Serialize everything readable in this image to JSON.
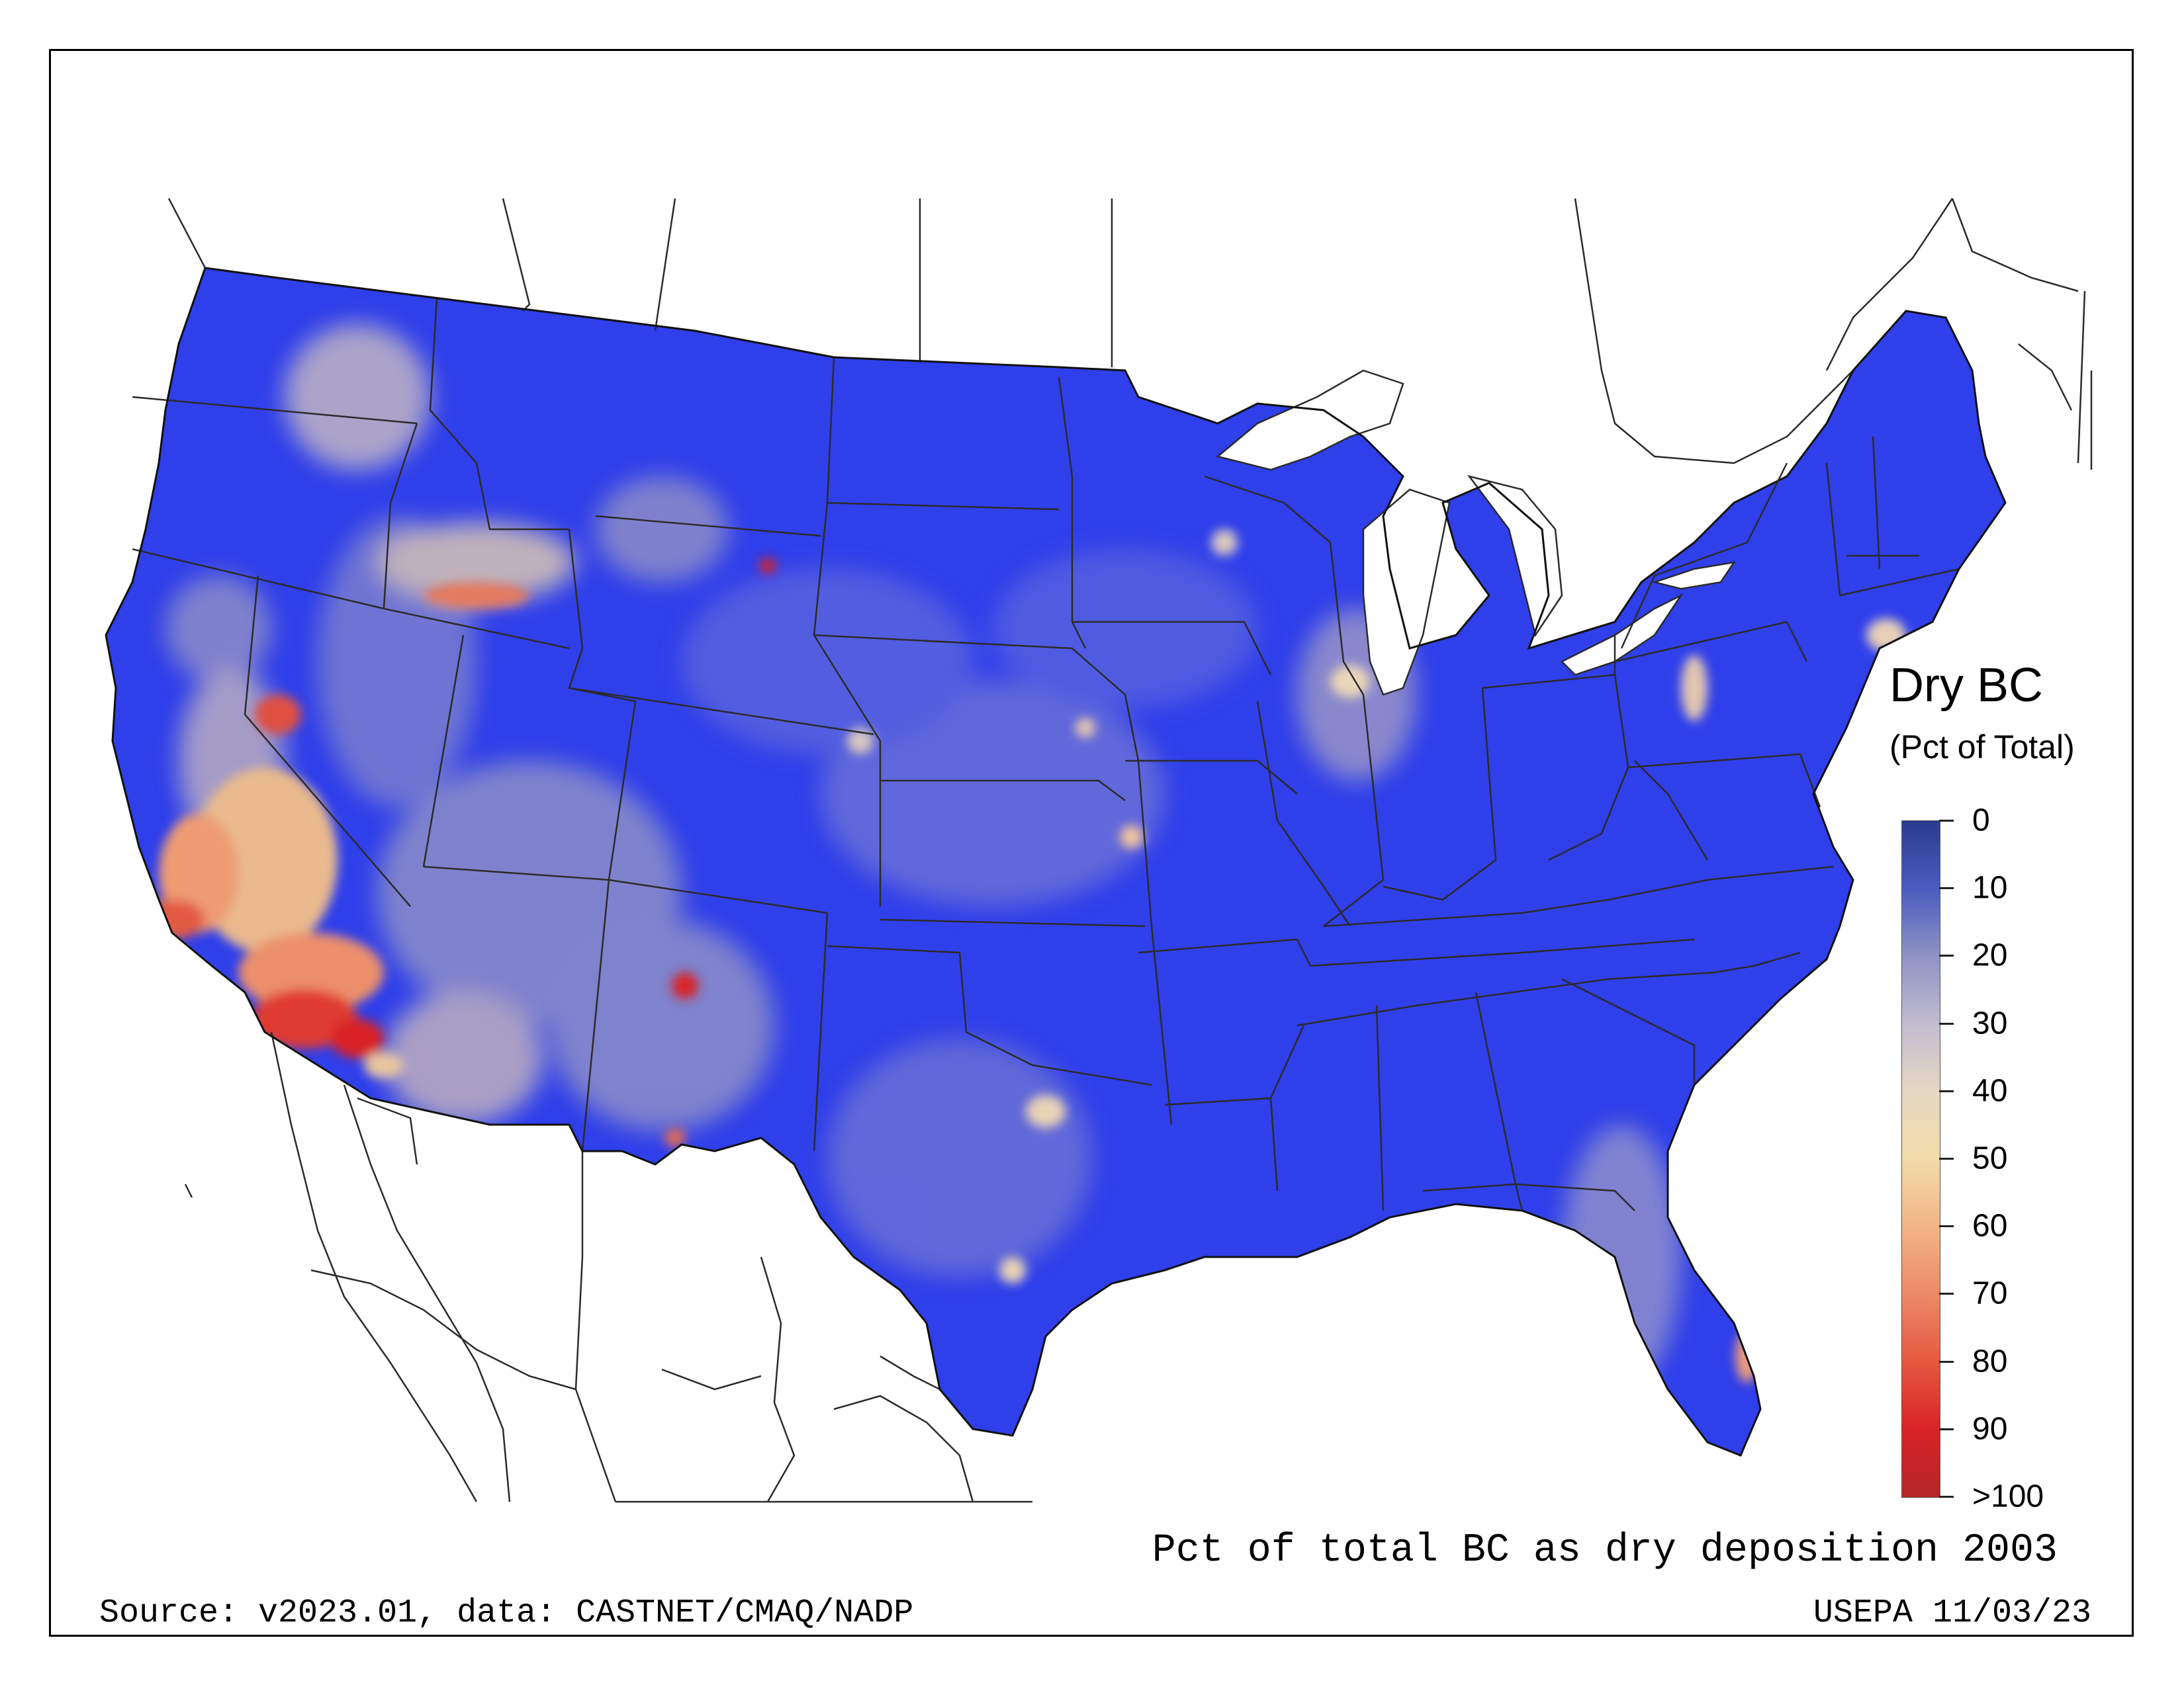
{
  "legend": {
    "title": "Dry BC",
    "subtitle": "(Pct of Total)",
    "ticks": [
      "0",
      "10",
      "20",
      "30",
      "40",
      "50",
      "60",
      "70",
      "80",
      "90",
      ">100"
    ],
    "colors": [
      "#2b3a8f",
      "#4a5cc0",
      "#8f93c4",
      "#c2bcd0",
      "#e6d7c2",
      "#f2dcaa",
      "#f2b486",
      "#ec8a68",
      "#e5583f",
      "#d92327",
      "#b3262b"
    ]
  },
  "map": {
    "base_color": "#2f3fea",
    "boundary_color": "#2b2b2b",
    "outline_color": "#111111"
  },
  "caption": "Pct of total BC as dry deposition 2003",
  "source": "Source: v2023.01, data: CASTNET/CMAQ/NADP",
  "stamp": "USEPA 11/03/23"
}
